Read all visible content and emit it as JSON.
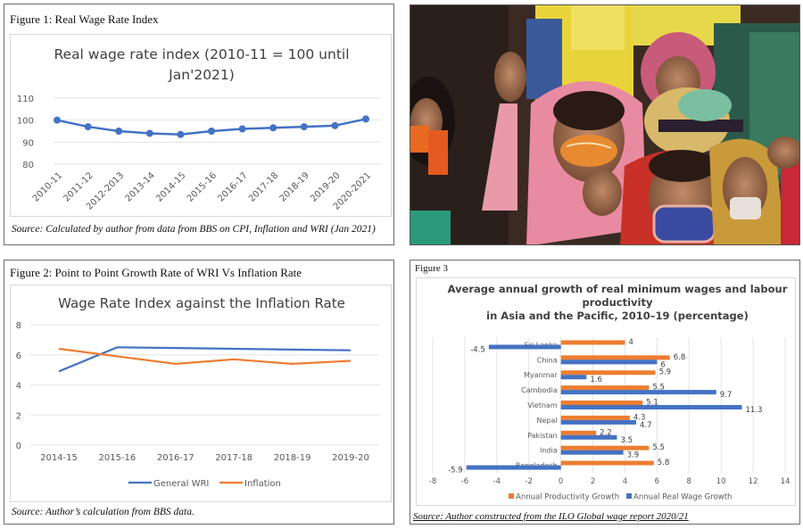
{
  "figure1": {
    "caption": "Figure 1:  Real Wage Rate Index",
    "source": "Source: Calculated by author from data from BBS on CPI, Inflation and WRI (Jan 2021)"
  },
  "figure2": {
    "caption": "Figure 2:  Point to Point Growth Rate of WRI Vs Inflation Rate",
    "source": "Source: Author’s calculation from BBS data."
  },
  "figure3": {
    "caption": "Figure 3",
    "source": "Source: Author constructed from the ILO Global wage report 2020/21"
  },
  "photo": {
    "description": "Photo of women garment workers protesting, wearing masks and headscarves, raising fists"
  },
  "colors": {
    "blue": "#4472c4",
    "orange": "#ed7d31",
    "grid": "#e3e3e3",
    "axis_text": "#595959",
    "title_text": "#404040"
  },
  "chart_data": [
    {
      "id": "figure1",
      "type": "line",
      "title": "Real wage rate index (2010-11 = 100 until",
      "title_line2": "Jan'2021)",
      "xlabel": "",
      "ylabel": "",
      "categories": [
        "2010-11",
        "2011-12",
        "2012-2013",
        "2013-14",
        "2014-15",
        "2015-16",
        "2016-17",
        "2017-18",
        "2018-19",
        "2019-20",
        "2020-2021"
      ],
      "series": [
        {
          "name": "Real wage rate index",
          "color": "#4472c4",
          "markers": true,
          "values": [
            100,
            97,
            95,
            94,
            93.5,
            95,
            96,
            96.5,
            97,
            97.5,
            100.5
          ]
        }
      ],
      "ylim": [
        80,
        110
      ],
      "yticks": [
        80,
        90,
        100,
        110
      ],
      "grid": true,
      "legend": "none"
    },
    {
      "id": "figure2",
      "type": "line",
      "title": "Wage Rate Index against the Inflation Rate",
      "xlabel": "",
      "ylabel": "",
      "categories": [
        "2014-15",
        "2015-16",
        "2016-17",
        "2017-18",
        "2018-19",
        "2019-20"
      ],
      "series": [
        {
          "name": "General WRI",
          "color": "#4472c4",
          "values": [
            4.9,
            6.5,
            6.45,
            6.4,
            6.35,
            6.3
          ]
        },
        {
          "name": "Inflation",
          "color": "#ed7d31",
          "values": [
            6.4,
            5.9,
            5.4,
            5.7,
            5.4,
            5.6
          ]
        }
      ],
      "ylim": [
        0,
        8
      ],
      "yticks": [
        0,
        2,
        4,
        6,
        8
      ],
      "grid": true,
      "legend": "bottom"
    },
    {
      "id": "figure3",
      "type": "bar",
      "orientation": "horizontal",
      "title_lines": [
        "Average annual growth of real minimum wages and labour",
        "productivity",
        "in Asia and the Pacific,  2010–19 (percentage)"
      ],
      "xlabel": "",
      "ylabel": "",
      "categories": [
        "Sri Lanka",
        "China",
        "Myanmar",
        "Cambodia",
        "Vietnam",
        "Nepal",
        "Pakistan",
        "India",
        "Bangladesh"
      ],
      "series": [
        {
          "name": "Annual Productivity Growth",
          "color": "#ed7d31",
          "values": [
            4,
            6.8,
            5.9,
            5.5,
            5.1,
            4.3,
            2.2,
            5.5,
            5.8
          ]
        },
        {
          "name": "Annual Real Wage Growth",
          "color": "#4472c4",
          "values": [
            -4.5,
            6,
            1.6,
            9.7,
            11.3,
            4.7,
            3.5,
            3.9,
            -5.9
          ]
        }
      ],
      "xlim": [
        -8,
        14
      ],
      "xticks": [
        -8,
        -6,
        -4,
        -2,
        0,
        2,
        4,
        6,
        8,
        10,
        12,
        14
      ],
      "grid": true,
      "data_labels": true,
      "legend": "bottom"
    }
  ]
}
